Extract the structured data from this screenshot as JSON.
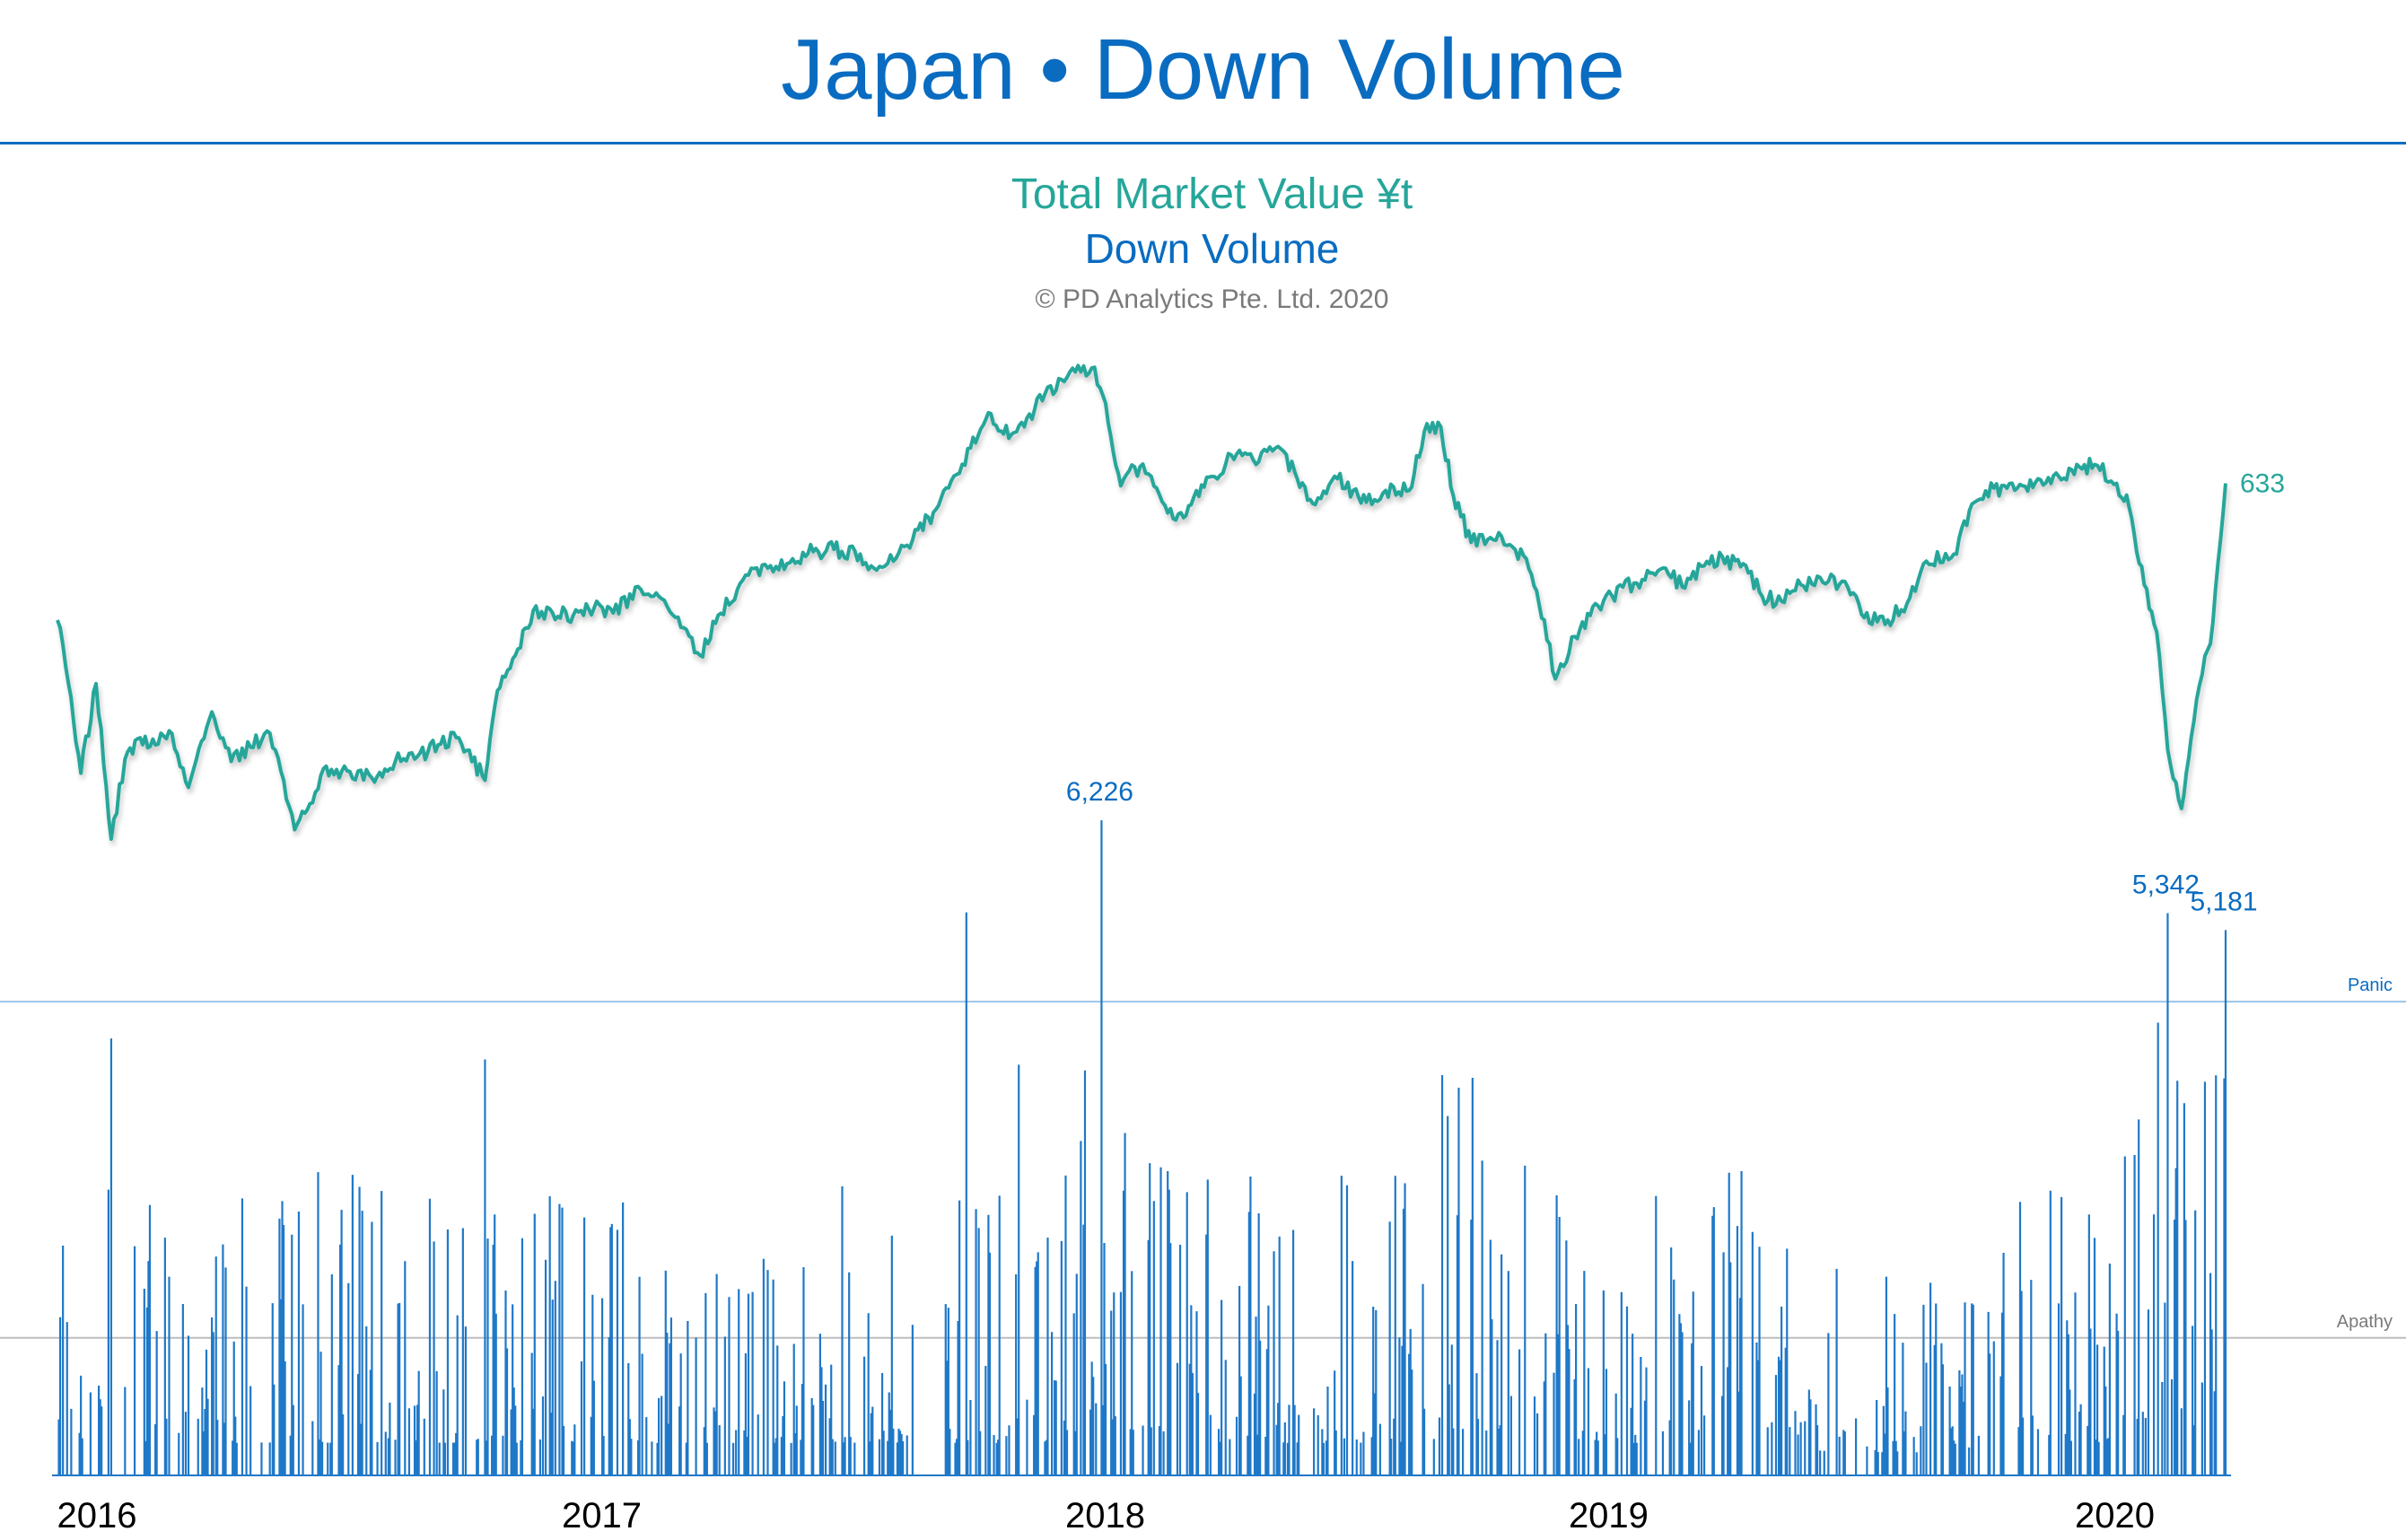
{
  "title": "Japan • Down Volume",
  "legend": {
    "market_value": "Total Market Value ¥t",
    "down_volume": "Down Volume",
    "copyright": "© PD Analytics Pte. Ltd. 2020"
  },
  "colors": {
    "title": "#0a6cc0",
    "market_line": "#26a69a",
    "bars": "#1f78c8",
    "panic_line": "#9cc4e8",
    "apathy_line": "#bdbdbd"
  },
  "chart_data": {
    "type": "line+bar",
    "x_tick_labels": [
      "2016",
      "2017",
      "2018",
      "2019",
      "2020"
    ],
    "x_range": [
      "2016-01-04",
      "2020-04-24"
    ],
    "reference_lines": [
      {
        "label": "Panic",
        "value": 4500
      },
      {
        "label": "Apathy",
        "value": 1300
      }
    ],
    "series": [
      {
        "name": "Total Market Value ¥t",
        "kind": "line",
        "end_label": "633",
        "points": [
          [
            "2016-01-04",
            575
          ],
          [
            "2016-01-12",
            548
          ],
          [
            "2016-01-21",
            510
          ],
          [
            "2016-02-01",
            548
          ],
          [
            "2016-02-12",
            482
          ],
          [
            "2016-02-22",
            516
          ],
          [
            "2016-03-04",
            525
          ],
          [
            "2016-03-15",
            522
          ],
          [
            "2016-03-25",
            528
          ],
          [
            "2016-04-08",
            504
          ],
          [
            "2016-04-25",
            536
          ],
          [
            "2016-05-09",
            515
          ],
          [
            "2016-05-23",
            521
          ],
          [
            "2016-06-06",
            527
          ],
          [
            "2016-06-16",
            507
          ],
          [
            "2016-06-24",
            486
          ],
          [
            "2016-07-05",
            497
          ],
          [
            "2016-07-15",
            512
          ],
          [
            "2016-08-01",
            511
          ],
          [
            "2016-08-19",
            508
          ],
          [
            "2016-09-05",
            515
          ],
          [
            "2016-09-21",
            517
          ],
          [
            "2016-10-06",
            522
          ],
          [
            "2016-10-21",
            525
          ],
          [
            "2016-11-09",
            507
          ],
          [
            "2016-11-18",
            545
          ],
          [
            "2016-12-01",
            560
          ],
          [
            "2016-12-14",
            579
          ],
          [
            "2016-12-28",
            578
          ],
          [
            "2017-01-12",
            577
          ],
          [
            "2017-01-27",
            580
          ],
          [
            "2017-02-10",
            578
          ],
          [
            "2017-03-02",
            588
          ],
          [
            "2017-03-15",
            585
          ],
          [
            "2017-04-04",
            571
          ],
          [
            "2017-04-14",
            560
          ],
          [
            "2017-04-27",
            577
          ],
          [
            "2017-05-15",
            592
          ],
          [
            "2017-06-02",
            597
          ],
          [
            "2017-06-20",
            601
          ],
          [
            "2017-07-05",
            604
          ],
          [
            "2017-07-20",
            605
          ],
          [
            "2017-08-08",
            603
          ],
          [
            "2017-08-18",
            597
          ],
          [
            "2017-09-01",
            600
          ],
          [
            "2017-09-15",
            609
          ],
          [
            "2017-10-02",
            622
          ],
          [
            "2017-10-13",
            634
          ],
          [
            "2017-10-27",
            648
          ],
          [
            "2017-11-09",
            663
          ],
          [
            "2017-11-20",
            654
          ],
          [
            "2017-12-05",
            657
          ],
          [
            "2017-12-20",
            671
          ],
          [
            "2018-01-05",
            678
          ],
          [
            "2018-01-23",
            682
          ],
          [
            "2018-02-02",
            667
          ],
          [
            "2018-02-13",
            632
          ],
          [
            "2018-02-23",
            640
          ],
          [
            "2018-03-07",
            636
          ],
          [
            "2018-03-23",
            618
          ],
          [
            "2018-04-05",
            624
          ],
          [
            "2018-04-20",
            636
          ],
          [
            "2018-05-10",
            647
          ],
          [
            "2018-05-22",
            641
          ],
          [
            "2018-06-05",
            648
          ],
          [
            "2018-06-19",
            638
          ],
          [
            "2018-07-04",
            624
          ],
          [
            "2018-07-20",
            635
          ],
          [
            "2018-08-10",
            625
          ],
          [
            "2018-08-24",
            630
          ],
          [
            "2018-09-10",
            630
          ],
          [
            "2018-09-21",
            655
          ],
          [
            "2018-10-03",
            657
          ],
          [
            "2018-10-12",
            628
          ],
          [
            "2018-10-25",
            608
          ],
          [
            "2018-11-08",
            610
          ],
          [
            "2018-11-22",
            607
          ],
          [
            "2018-12-04",
            601
          ],
          [
            "2018-12-17",
            575
          ],
          [
            "2018-12-25",
            550
          ],
          [
            "2019-01-08",
            568
          ],
          [
            "2019-01-25",
            581
          ],
          [
            "2019-02-12",
            589
          ],
          [
            "2019-02-28",
            592
          ],
          [
            "2019-03-15",
            597
          ],
          [
            "2019-03-27",
            589
          ],
          [
            "2019-04-12",
            598
          ],
          [
            "2019-04-25",
            602
          ],
          [
            "2019-05-14",
            595
          ],
          [
            "2019-05-24",
            585
          ],
          [
            "2019-06-07",
            583
          ],
          [
            "2019-06-21",
            590
          ],
          [
            "2019-07-05",
            593
          ],
          [
            "2019-07-25",
            589
          ],
          [
            "2019-08-06",
            576
          ],
          [
            "2019-08-23",
            575
          ],
          [
            "2019-09-06",
            582
          ],
          [
            "2019-09-20",
            600
          ],
          [
            "2019-10-10",
            603
          ],
          [
            "2019-10-25",
            625
          ],
          [
            "2019-11-08",
            631
          ],
          [
            "2019-11-25",
            631
          ],
          [
            "2019-12-10",
            635
          ],
          [
            "2019-12-25",
            636
          ],
          [
            "2020-01-09",
            640
          ],
          [
            "2020-01-20",
            641
          ],
          [
            "2020-02-05",
            633
          ],
          [
            "2020-02-14",
            623
          ],
          [
            "2020-02-25",
            590
          ],
          [
            "2020-03-05",
            570
          ],
          [
            "2020-03-13",
            520
          ],
          [
            "2020-03-23",
            495
          ],
          [
            "2020-03-30",
            525
          ],
          [
            "2020-04-07",
            552
          ],
          [
            "2020-04-13",
            565
          ],
          [
            "2020-04-24",
            633
          ]
        ]
      },
      {
        "name": "Down Volume",
        "kind": "bar",
        "callouts": [
          {
            "date": "2018-01-30",
            "value": 6226,
            "label": "6,226"
          },
          {
            "date": "2020-03-13",
            "value": 5342,
            "label": "5,342"
          },
          {
            "date": "2020-04-24",
            "value": 5181,
            "label": "5,181"
          }
        ],
        "other_peaks": [
          {
            "date": "2017-10-24",
            "value": 5350
          },
          {
            "date": "2016-02-12",
            "value": 4150
          },
          {
            "date": "2016-11-09",
            "value": 3950
          },
          {
            "date": "2017-12-01",
            "value": 3900
          },
          {
            "date": "2018-10-04",
            "value": 3800
          },
          {
            "date": "2020-03-06",
            "value": 4300
          }
        ],
        "y_range": [
          0,
          7000
        ]
      }
    ]
  }
}
